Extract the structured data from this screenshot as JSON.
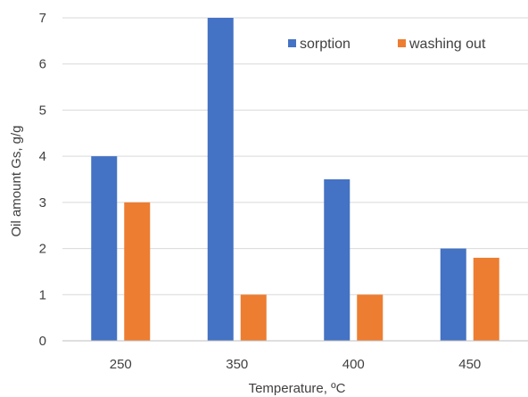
{
  "chart_data": {
    "type": "bar",
    "categories": [
      "250",
      "350",
      "400",
      "450"
    ],
    "series": [
      {
        "name": "sorption",
        "values": [
          4,
          7,
          3.5,
          2
        ],
        "color": "#4472C4"
      },
      {
        "name": "washing out",
        "values": [
          3,
          1,
          1,
          1.8
        ],
        "color": "#ED7D31"
      }
    ],
    "xlabel": "Temperature, ºC",
    "ylabel": "Oil amount Gs, g/g",
    "ylim": [
      0,
      7
    ],
    "yticks": [
      "0",
      "1",
      "2",
      "3",
      "4",
      "5",
      "6",
      "7"
    ],
    "grid": true,
    "legend_position": "top-right",
    "gridline_color": "#D9D9D9",
    "axis_line_color": "#BFBFBF",
    "text_color": "#404040"
  }
}
